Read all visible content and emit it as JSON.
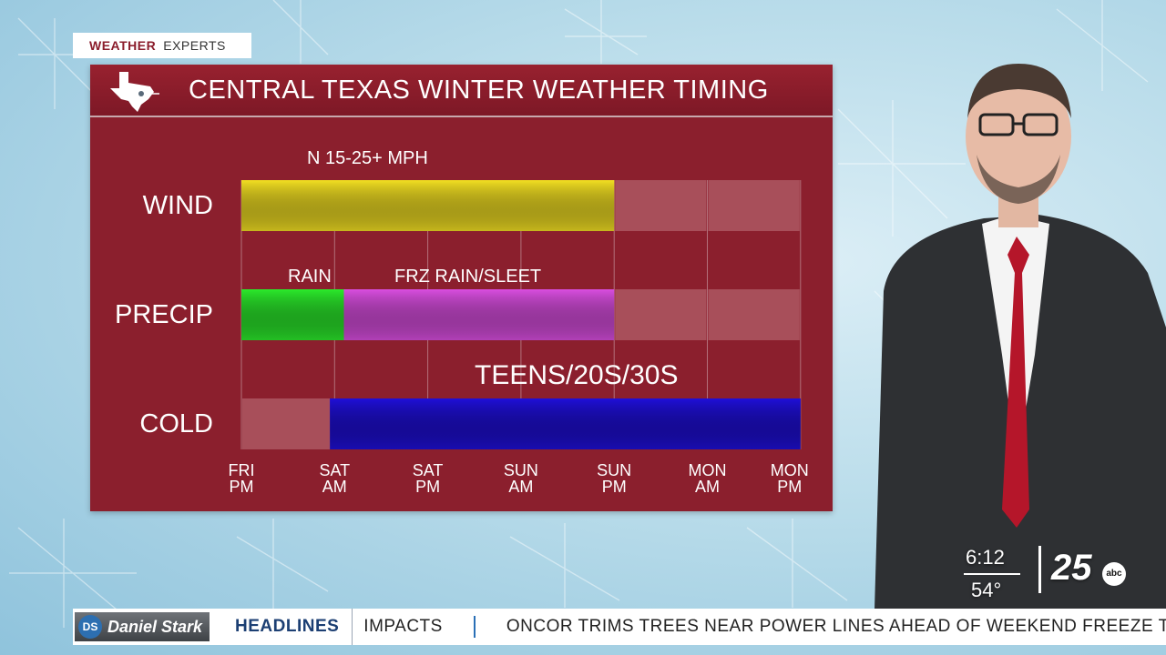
{
  "brand": {
    "weather": "WEATHER",
    "experts": "EXPERTS"
  },
  "panel": {
    "title": "CENTRAL TEXAS WINTER WEATHER TIMING"
  },
  "colors": {
    "panel": "#8b1f2d",
    "wind": "#f2df22",
    "rain": "#2bea2b",
    "frz_rain_sleet": "#d94ee0",
    "cold": "#1f0fd8",
    "inactive": "#a84f5a"
  },
  "chart_data": {
    "type": "timeline",
    "x_ticks": [
      {
        "line1": "FRI",
        "line2": "PM"
      },
      {
        "line1": "SAT",
        "line2": "AM"
      },
      {
        "line1": "SAT",
        "line2": "PM"
      },
      {
        "line1": "SUN",
        "line2": "AM"
      },
      {
        "line1": "SUN",
        "line2": "PM"
      },
      {
        "line1": "MON",
        "line2": "AM"
      },
      {
        "line1": "MON",
        "line2": "PM"
      }
    ],
    "rows": [
      {
        "label": "WIND",
        "segments": [
          {
            "start": 0,
            "end": 4,
            "color_key": "wind",
            "label": "N 15-25+ MPH"
          }
        ]
      },
      {
        "label": "PRECIP",
        "segments": [
          {
            "start": 0,
            "end": 1.1,
            "color_key": "rain",
            "label": "RAIN"
          },
          {
            "start": 1.1,
            "end": 4,
            "color_key": "frz_rain_sleet",
            "label": "FRZ RAIN/SLEET"
          }
        ]
      },
      {
        "label": "COLD",
        "segments": [
          {
            "start": 0.95,
            "end": 6,
            "color_key": "cold",
            "label": "TEENS/20S/30S"
          }
        ]
      }
    ]
  },
  "bug": {
    "time": "6:12",
    "temp": "54°",
    "station": "25",
    "network": "abc"
  },
  "ticker": {
    "sponsor_initials": "DS",
    "sponsor_name": "Daniel Stark",
    "section": "HEADLINES",
    "topic": "IMPACTS",
    "story": "ONCOR TRIMS TREES NEAR POWER LINES AHEAD OF WEEKEND FREEZE T"
  }
}
